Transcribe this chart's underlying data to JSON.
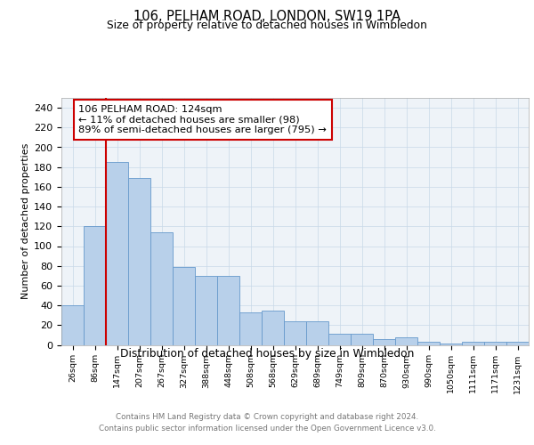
{
  "title": "106, PELHAM ROAD, LONDON, SW19 1PA",
  "subtitle": "Size of property relative to detached houses in Wimbledon",
  "xlabel": "Distribution of detached houses by size in Wimbledon",
  "ylabel": "Number of detached properties",
  "bar_labels": [
    "26sqm",
    "86sqm",
    "147sqm",
    "207sqm",
    "267sqm",
    "327sqm",
    "388sqm",
    "448sqm",
    "508sqm",
    "568sqm",
    "629sqm",
    "689sqm",
    "749sqm",
    "809sqm",
    "870sqm",
    "930sqm",
    "990sqm",
    "1050sqm",
    "1111sqm",
    "1171sqm",
    "1231sqm"
  ],
  "bar_values": [
    40,
    120,
    185,
    169,
    114,
    79,
    70,
    70,
    33,
    35,
    24,
    24,
    11,
    11,
    6,
    8,
    3,
    1,
    3,
    3,
    3
  ],
  "bar_color": "#b8d0ea",
  "bar_edge_color": "#6699cc",
  "vline_color": "#cc0000",
  "annotation_text": "106 PELHAM ROAD: 124sqm\n← 11% of detached houses are smaller (98)\n89% of semi-detached houses are larger (795) →",
  "annotation_box_color": "white",
  "annotation_box_edge": "#cc0000",
  "ylim": [
    0,
    250
  ],
  "yticks": [
    0,
    20,
    40,
    60,
    80,
    100,
    120,
    140,
    160,
    180,
    200,
    220,
    240
  ],
  "footer_line1": "Contains HM Land Registry data © Crown copyright and database right 2024.",
  "footer_line2": "Contains public sector information licensed under the Open Government Licence v3.0.",
  "background_color": "#eef3f8",
  "grid_color": "#c8d8e8",
  "fig_bg": "#ffffff"
}
